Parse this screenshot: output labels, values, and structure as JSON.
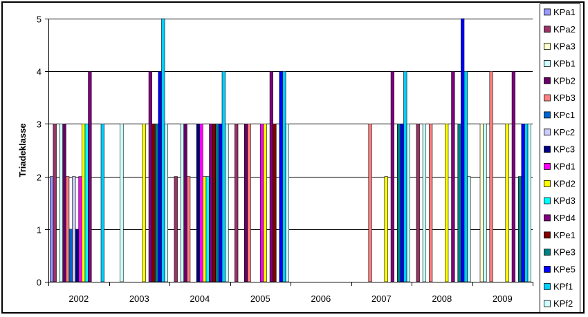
{
  "chart_data": {
    "type": "bar",
    "title": "",
    "xlabel": "",
    "ylabel": "Triadeklasse",
    "ylim": [
      0,
      5
    ],
    "yticks": [
      0,
      1,
      2,
      3,
      4,
      5
    ],
    "grid": "horizontal",
    "legend": "right",
    "categories": [
      "2002",
      "2003",
      "2004",
      "2005",
      "2006",
      "2007",
      "2008",
      "2009"
    ],
    "series": [
      {
        "name": "KPa1",
        "color": "#9999ff",
        "values": [
          2,
          null,
          null,
          null,
          null,
          null,
          null,
          null
        ]
      },
      {
        "name": "KPa2",
        "color": "#993366",
        "values": [
          3,
          null,
          2,
          3,
          null,
          null,
          3,
          null
        ]
      },
      {
        "name": "KPa3",
        "color": "#ffffcc",
        "values": [
          null,
          null,
          null,
          null,
          null,
          null,
          null,
          3
        ]
      },
      {
        "name": "KPb1",
        "color": "#ccffff",
        "values": [
          3,
          3,
          3,
          null,
          null,
          null,
          3,
          3
        ]
      },
      {
        "name": "KPb2",
        "color": "#660066",
        "values": [
          3,
          null,
          3,
          3,
          null,
          null,
          null,
          null
        ]
      },
      {
        "name": "KPb3",
        "color": "#ff8080",
        "values": [
          2,
          null,
          2,
          3,
          null,
          3,
          3,
          4
        ]
      },
      {
        "name": "KPc1",
        "color": "#0066cc",
        "values": [
          1,
          null,
          null,
          null,
          null,
          null,
          null,
          null
        ]
      },
      {
        "name": "KPc2",
        "color": "#ccccff",
        "values": [
          2,
          null,
          null,
          null,
          null,
          null,
          null,
          null
        ]
      },
      {
        "name": "KPc3",
        "color": "#000080",
        "values": [
          1,
          null,
          3,
          null,
          null,
          null,
          null,
          null
        ]
      },
      {
        "name": "KPd1",
        "color": "#ff00ff",
        "values": [
          2,
          null,
          3,
          3,
          null,
          null,
          null,
          null
        ]
      },
      {
        "name": "KPd2",
        "color": "#ffff00",
        "values": [
          3,
          3,
          2,
          3,
          null,
          2,
          3,
          3
        ]
      },
      {
        "name": "KPd3",
        "color": "#00ffff",
        "values": [
          3,
          null,
          2,
          null,
          null,
          null,
          null,
          null
        ]
      },
      {
        "name": "KPd4",
        "color": "#800080",
        "values": [
          4,
          4,
          3,
          4,
          null,
          4,
          4,
          4
        ]
      },
      {
        "name": "KPe1",
        "color": "#800000",
        "values": [
          null,
          3,
          3,
          3,
          null,
          null,
          null,
          null
        ]
      },
      {
        "name": "KPe3",
        "color": "#008080",
        "values": [
          null,
          3,
          3,
          null,
          null,
          3,
          3,
          2
        ]
      },
      {
        "name": "KPe5",
        "color": "#0000ff",
        "values": [
          null,
          4,
          3,
          4,
          null,
          3,
          5,
          3
        ]
      },
      {
        "name": "KPf1",
        "color": "#00ccff",
        "values": [
          3,
          5,
          4,
          4,
          null,
          4,
          4,
          3
        ]
      },
      {
        "name": "KPf2",
        "color": "#ccffff",
        "values": [
          null,
          3,
          3,
          3,
          null,
          3,
          2,
          3
        ]
      }
    ]
  }
}
